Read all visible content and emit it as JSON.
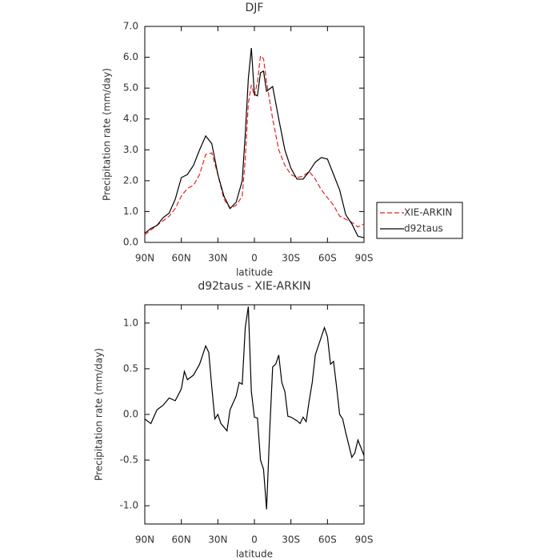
{
  "chart_data": [
    {
      "type": "line",
      "title": "DJF",
      "xlabel": "latitude",
      "ylabel": "Precipitation rate (mm/day)",
      "x": [
        90,
        85,
        80,
        75,
        70,
        65,
        60,
        55,
        50,
        45,
        40,
        35,
        30,
        25,
        20,
        15,
        10,
        7.5,
        5,
        2.5,
        0,
        -2.5,
        -5,
        -7.5,
        -10,
        -15,
        -20,
        -25,
        -30,
        -35,
        -40,
        -45,
        -50,
        -55,
        -60,
        -65,
        -70,
        -75,
        -80,
        -85,
        -90
      ],
      "series": [
        {
          "name": "XIE-ARKIN",
          "color": "#e8201e",
          "style": "dashed",
          "values": [
            0.25,
            0.4,
            0.55,
            0.7,
            0.85,
            1.1,
            1.5,
            1.75,
            1.85,
            2.2,
            2.85,
            2.9,
            2.2,
            1.4,
            1.1,
            1.2,
            1.5,
            2.7,
            4.5,
            5.1,
            4.75,
            5.2,
            6.05,
            5.95,
            5.2,
            4.0,
            3.0,
            2.5,
            2.2,
            2.1,
            2.15,
            2.3,
            2.05,
            1.7,
            1.45,
            1.2,
            0.85,
            0.75,
            0.65,
            0.5,
            0.6
          ]
        },
        {
          "name": "d92taus",
          "color": "#000000",
          "style": "solid",
          "values": [
            0.3,
            0.45,
            0.55,
            0.8,
            0.95,
            1.4,
            2.1,
            2.2,
            2.5,
            3.0,
            3.45,
            3.2,
            2.2,
            1.5,
            1.1,
            1.3,
            2.0,
            3.5,
            5.3,
            6.3,
            4.8,
            4.75,
            5.5,
            5.55,
            4.9,
            5.05,
            4.0,
            3.0,
            2.4,
            2.05,
            2.05,
            2.3,
            2.6,
            2.75,
            2.7,
            2.2,
            1.7,
            0.9,
            0.6,
            0.2,
            0.15
          ]
        }
      ],
      "xlim": [
        90,
        -90
      ],
      "xticks": [
        {
          "value": 90,
          "label": "90N"
        },
        {
          "value": 60,
          "label": "60N"
        },
        {
          "value": 30,
          "label": "30N"
        },
        0,
        {
          "value": -30,
          "label": "30S"
        },
        {
          "value": -60,
          "label": "60S"
        },
        {
          "value": -90,
          "label": "90S"
        }
      ],
      "ylim": [
        0,
        7
      ],
      "yticks": [
        {
          "value": 0,
          "label": "0.0"
        },
        {
          "value": 1,
          "label": "1.0"
        },
        {
          "value": 2,
          "label": "2.0"
        },
        {
          "value": 3,
          "label": "3.0"
        },
        {
          "value": 4,
          "label": "4.0"
        },
        {
          "value": 5,
          "label": "5.0"
        },
        {
          "value": 6,
          "label": "6.0"
        },
        {
          "value": 7,
          "label": "7.0"
        }
      ],
      "legend": "right"
    },
    {
      "type": "line",
      "title": "d92taus - XIE-ARKIN",
      "xlabel": "latitude",
      "ylabel": "Precipitation rate (mm/day)",
      "x": [
        90,
        85,
        80,
        75,
        70,
        65,
        60,
        57.5,
        55,
        50,
        45,
        40,
        37.5,
        35,
        32.5,
        30,
        27.5,
        22.5,
        20,
        15,
        12.5,
        10,
        7.5,
        5,
        2.5,
        0,
        -2.5,
        -5,
        -7.5,
        -10,
        -12.5,
        -15,
        -17.5,
        -20,
        -22.5,
        -25,
        -27.5,
        -30,
        -35,
        -37.5,
        -40,
        -42.5,
        -45,
        -47.5,
        -50,
        -55,
        -57.5,
        -60,
        -62.5,
        -65,
        -67.5,
        -70,
        -72.5,
        -75,
        -80,
        -82.5,
        -85,
        -90
      ],
      "color": "#000000",
      "values": [
        -0.05,
        -0.1,
        0.05,
        0.1,
        0.18,
        0.15,
        0.28,
        0.47,
        0.38,
        0.43,
        0.55,
        0.75,
        0.68,
        0.3,
        -0.05,
        0.0,
        -0.1,
        -0.18,
        0.05,
        0.2,
        0.35,
        0.33,
        0.95,
        1.18,
        0.25,
        -0.03,
        -0.04,
        -0.5,
        -0.6,
        -1.04,
        -0.2,
        0.52,
        0.55,
        0.65,
        0.35,
        0.25,
        -0.02,
        -0.03,
        -0.07,
        -0.1,
        -0.03,
        -0.08,
        0.15,
        0.35,
        0.65,
        0.85,
        0.95,
        0.85,
        0.55,
        0.58,
        0.3,
        0.0,
        -0.05,
        -0.2,
        -0.47,
        -0.42,
        -0.28,
        -0.45
      ],
      "xlim": [
        90,
        -90
      ],
      "xticks": [
        {
          "value": 90,
          "label": "90N"
        },
        {
          "value": 60,
          "label": "60N"
        },
        {
          "value": 30,
          "label": "30N"
        },
        0,
        {
          "value": -30,
          "label": "30S"
        },
        {
          "value": -60,
          "label": "60S"
        },
        {
          "value": -90,
          "label": "90S"
        }
      ],
      "ylim": [
        -1.2,
        1.2
      ],
      "yticks": [
        {
          "value": -1,
          "label": "-1.0"
        },
        {
          "value": -0.5,
          "label": "-0.5"
        },
        {
          "value": 0,
          "label": "0.0"
        },
        {
          "value": 0.5,
          "label": "0.5"
        },
        {
          "value": 1,
          "label": "1.0"
        }
      ]
    }
  ]
}
